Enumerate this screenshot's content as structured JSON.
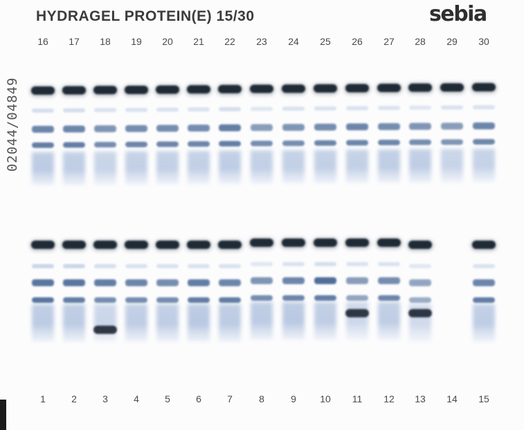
{
  "header": {
    "title": "HYDRAGEL PROTEIN(E) 15/30",
    "brand": "sebia"
  },
  "serial": "02044/04849",
  "top_row": {
    "labels": [
      "16",
      "17",
      "18",
      "19",
      "20",
      "21",
      "22",
      "23",
      "24",
      "25",
      "26",
      "27",
      "28",
      "29",
      "30"
    ]
  },
  "bottom_row": {
    "labels": [
      "1",
      "2",
      "3",
      "4",
      "5",
      "6",
      "7",
      "8",
      "9",
      "10",
      "11",
      "12",
      "13",
      "14",
      "15"
    ]
  },
  "lanes": {
    "top": [
      {
        "alb": 1,
        "a1": 0.35,
        "a2": 0.75,
        "b": 0.8,
        "g": 0.55,
        "m": 0
      },
      {
        "alb": 1,
        "a1": 0.35,
        "a2": 0.75,
        "b": 0.8,
        "g": 0.5,
        "m": 0
      },
      {
        "alb": 1,
        "a1": 0.3,
        "a2": 0.65,
        "b": 0.7,
        "g": 0.35,
        "m": 0
      },
      {
        "alb": 1,
        "a1": 0.3,
        "a2": 0.7,
        "b": 0.75,
        "g": 0.45,
        "m": 0
      },
      {
        "alb": 1,
        "a1": 0.3,
        "a2": 0.7,
        "b": 0.75,
        "g": 0.45,
        "m": 0
      },
      {
        "alb": 1,
        "a1": 0.3,
        "a2": 0.7,
        "b": 0.75,
        "g": 0.45,
        "m": 0
      },
      {
        "alb": 1,
        "a1": 0.35,
        "a2": 0.8,
        "b": 0.8,
        "g": 0.5,
        "m": 0
      },
      {
        "alb": 1,
        "a1": 0.25,
        "a2": 0.6,
        "b": 0.7,
        "g": 0.45,
        "m": 0
      },
      {
        "alb": 1,
        "a1": 0.3,
        "a2": 0.65,
        "b": 0.7,
        "g": 0.45,
        "m": 0
      },
      {
        "alb": 1,
        "a1": 0.3,
        "a2": 0.7,
        "b": 0.75,
        "g": 0.45,
        "m": 0
      },
      {
        "alb": 1,
        "a1": 0.3,
        "a2": 0.75,
        "b": 0.75,
        "g": 0.45,
        "m": 0
      },
      {
        "alb": 1,
        "a1": 0.3,
        "a2": 0.7,
        "b": 0.75,
        "g": 0.5,
        "m": 0
      },
      {
        "alb": 1,
        "a1": 0.25,
        "a2": 0.65,
        "b": 0.7,
        "g": 0.5,
        "m": 0
      },
      {
        "alb": 1,
        "a1": 0.3,
        "a2": 0.6,
        "b": 0.65,
        "g": 0.35,
        "m": 0
      },
      {
        "alb": 1,
        "a1": 0.3,
        "a2": 0.75,
        "b": 0.75,
        "g": 0.4,
        "m": 0
      }
    ],
    "bottom": [
      {
        "alb": 1,
        "a1": 0.45,
        "a2": 0.85,
        "b": 0.85,
        "g": 0.55,
        "m": 0
      },
      {
        "alb": 1,
        "a1": 0.45,
        "a2": 0.85,
        "b": 0.8,
        "g": 0.55,
        "m": 0
      },
      {
        "alb": 1,
        "a1": 0.35,
        "a2": 0.8,
        "b": 0.7,
        "g": 0.3,
        "m": 1
      },
      {
        "alb": 1,
        "a1": 0.3,
        "a2": 0.75,
        "b": 0.7,
        "g": 0.5,
        "m": 0
      },
      {
        "alb": 1,
        "a1": 0.3,
        "a2": 0.7,
        "b": 0.7,
        "g": 0.5,
        "m": 0
      },
      {
        "alb": 1,
        "a1": 0.3,
        "a2": 0.8,
        "b": 0.8,
        "g": 0.6,
        "m": 0
      },
      {
        "alb": 1,
        "a1": 0.3,
        "a2": 0.75,
        "b": 0.8,
        "g": 0.55,
        "m": 0
      },
      {
        "alb": 1,
        "a1": 0.25,
        "a2": 0.65,
        "b": 0.7,
        "g": 0.55,
        "m": 0
      },
      {
        "alb": 1,
        "a1": 0.3,
        "a2": 0.75,
        "b": 0.75,
        "g": 0.6,
        "m": 0
      },
      {
        "alb": 1,
        "a1": 0.35,
        "a2": 0.9,
        "b": 0.8,
        "g": 0.5,
        "m": 0
      },
      {
        "alb": 1,
        "a1": 0.3,
        "a2": 0.6,
        "b": 0.55,
        "g": 0.25,
        "m": 1
      },
      {
        "alb": 1,
        "a1": 0.3,
        "a2": 0.7,
        "b": 0.75,
        "g": 0.5,
        "m": 0
      },
      {
        "alb": 1,
        "a1": 0.25,
        "a2": 0.55,
        "b": 0.5,
        "g": 0.2,
        "m": 1
      },
      {
        "alb": 0,
        "a1": 0,
        "a2": 0,
        "b": 0,
        "g": 0,
        "m": 0
      },
      {
        "alb": 1,
        "a1": 0.3,
        "a2": 0.75,
        "b": 0.8,
        "g": 0.5,
        "m": 0
      }
    ]
  },
  "colors": {
    "albumin": "#14202e",
    "band": "#3c5f8f",
    "haze": "#8ea8cf",
    "mspike": "#1a2633"
  }
}
